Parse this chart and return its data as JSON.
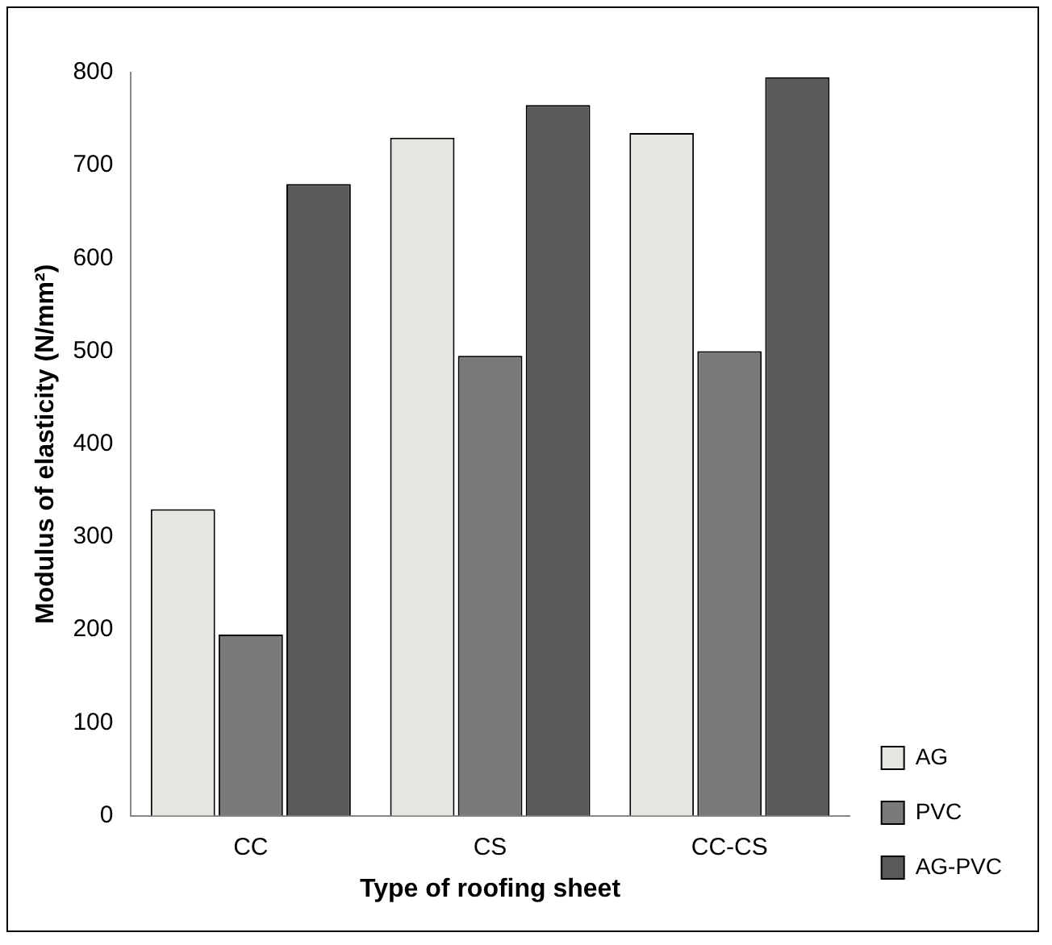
{
  "chart_data": {
    "type": "bar",
    "xlabel": "Type of roofing sheet",
    "ylabel": "Modulus of elasticity (N/mm²)",
    "categories": [
      "CC",
      "CS",
      "CC-CS"
    ],
    "series": [
      {
        "name": "AG",
        "color": "#e6e6e0",
        "values": [
          330,
          730,
          735
        ]
      },
      {
        "name": "PVC",
        "color": "#7a7a7a",
        "values": [
          195,
          495,
          500
        ]
      },
      {
        "name": "AG-PVC",
        "color": "#5a5a5a",
        "values": [
          680,
          765,
          795
        ]
      }
    ],
    "ylim": [
      0,
      800
    ],
    "yticks": [
      0,
      100,
      200,
      300,
      400,
      500,
      600,
      700,
      800
    ],
    "grid": false,
    "legend": "bottom right"
  }
}
